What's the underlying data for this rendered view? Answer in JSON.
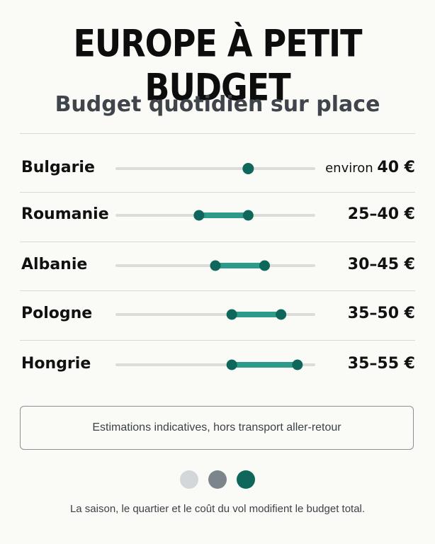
{
  "header": {
    "title": "EUROPE À PETIT BUDGET",
    "subtitle": "Budget quotidien sur place"
  },
  "chart_data": {
    "type": "range",
    "unit": "€",
    "xlim": [
      0,
      60
    ],
    "rows": [
      {
        "country": "Bulgarie",
        "min": 40,
        "max": 40,
        "prefix": "environ",
        "value_label": "40 €"
      },
      {
        "country": "Roumanie",
        "min": 25,
        "max": 40,
        "prefix": "",
        "value_label": "25–40 €"
      },
      {
        "country": "Albanie",
        "min": 30,
        "max": 45,
        "prefix": "",
        "value_label": "30–45 €"
      },
      {
        "country": "Pologne",
        "min": 35,
        "max": 50,
        "prefix": "",
        "value_label": "35–50 €"
      },
      {
        "country": "Hongrie",
        "min": 35,
        "max": 55,
        "prefix": "",
        "value_label": "35–55 €"
      }
    ],
    "colors": {
      "track": "#dcdcda",
      "range": "#2e9a8a",
      "dot": "#0f665a"
    }
  },
  "note": "Estimations indicatives, hors transport aller-retour",
  "dots": [
    {
      "name": "dot-light",
      "color": "#d3d7da"
    },
    {
      "name": "dot-gray",
      "color": "#7c858b"
    },
    {
      "name": "dot-teal",
      "color": "#0f665a"
    }
  ],
  "footer": "La saison, le quartier et le coût du vol modifient le budget total."
}
